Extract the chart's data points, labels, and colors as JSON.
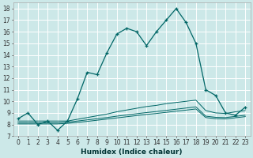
{
  "title": "",
  "xlabel": "Humidex (Indice chaleur)",
  "bg_color": "#cce8e8",
  "grid_color": "#ffffff",
  "line_color": "#006666",
  "xlim": [
    -0.5,
    23.5
  ],
  "ylim": [
    7,
    18.5
  ],
  "yticks": [
    7,
    8,
    9,
    10,
    11,
    12,
    13,
    14,
    15,
    16,
    17,
    18
  ],
  "xticks": [
    0,
    1,
    2,
    3,
    4,
    5,
    6,
    7,
    8,
    9,
    10,
    11,
    12,
    13,
    14,
    15,
    16,
    17,
    18,
    19,
    20,
    21,
    22,
    23
  ],
  "main_x": [
    0,
    1,
    2,
    3,
    4,
    5,
    6,
    7,
    8,
    9,
    10,
    11,
    12,
    13,
    14,
    15,
    16,
    17,
    18,
    19,
    20,
    21,
    22,
    23
  ],
  "main_y": [
    8.5,
    9.0,
    8.0,
    8.3,
    7.5,
    8.3,
    10.2,
    12.5,
    12.3,
    14.2,
    15.8,
    16.3,
    16.0,
    14.8,
    16.0,
    17.0,
    18.0,
    16.8,
    15.0,
    11.0,
    10.5,
    9.0,
    8.8,
    9.5
  ],
  "line2_x": [
    0,
    1,
    2,
    3,
    4,
    5,
    6,
    7,
    8,
    9,
    10,
    11,
    12,
    13,
    14,
    15,
    16,
    17,
    18,
    19,
    20,
    21,
    22,
    23
  ],
  "line2_y": [
    8.3,
    8.3,
    8.3,
    8.3,
    8.3,
    8.3,
    8.45,
    8.6,
    8.75,
    8.9,
    9.1,
    9.25,
    9.4,
    9.55,
    9.65,
    9.8,
    9.9,
    10.0,
    10.1,
    9.2,
    9.0,
    8.95,
    9.1,
    9.2
  ],
  "line3_x": [
    0,
    1,
    2,
    3,
    4,
    5,
    6,
    7,
    8,
    9,
    10,
    11,
    12,
    13,
    14,
    15,
    16,
    17,
    18,
    19,
    20,
    21,
    22,
    23
  ],
  "line3_y": [
    8.15,
    8.15,
    8.15,
    8.15,
    8.15,
    8.2,
    8.3,
    8.4,
    8.5,
    8.6,
    8.72,
    8.82,
    8.93,
    9.03,
    9.12,
    9.22,
    9.32,
    9.42,
    9.52,
    8.72,
    8.62,
    8.6,
    8.7,
    8.8
  ],
  "line4_x": [
    0,
    1,
    2,
    3,
    4,
    5,
    6,
    7,
    8,
    9,
    10,
    11,
    12,
    13,
    14,
    15,
    16,
    17,
    18,
    19,
    20,
    21,
    22,
    23
  ],
  "line4_y": [
    8.05,
    8.05,
    8.05,
    8.05,
    8.05,
    8.1,
    8.18,
    8.27,
    8.37,
    8.47,
    8.57,
    8.67,
    8.77,
    8.87,
    8.95,
    9.05,
    9.15,
    9.24,
    9.34,
    8.6,
    8.5,
    8.48,
    8.58,
    8.68
  ]
}
